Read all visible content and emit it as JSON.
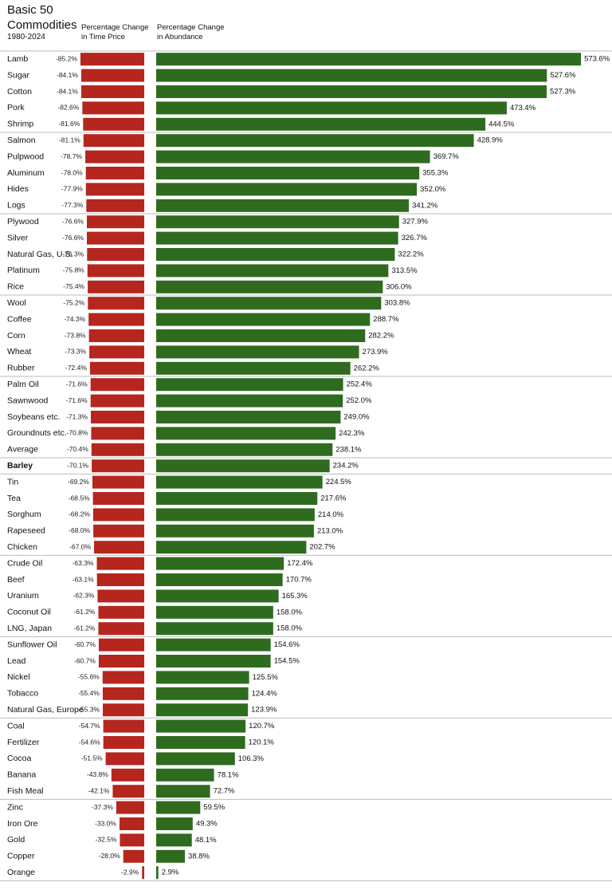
{
  "chart_data": {
    "type": "bar",
    "orientation": "horizontal",
    "title": "Basic 50 Commodities",
    "subtitle": "1980-2024",
    "categories": [
      "Lamb",
      "Sugar",
      "Cotton",
      "Pork",
      "Shrimp",
      "Salmon",
      "Pulpwood",
      "Aluminum",
      "Hides",
      "Logs",
      "Plywood",
      "Silver",
      "Natural Gas, U.S.",
      "Platinum",
      "Rice",
      "Wool",
      "Coffee",
      "Corn",
      "Wheat",
      "Rubber",
      "Palm Oil",
      "Sawnwood",
      "Soybeans etc.",
      "Groundnuts etc.",
      "Average",
      "Barley",
      "Tin",
      "Tea",
      "Sorghum",
      "Rapeseed",
      "Chicken",
      "Crude Oil",
      "Beef",
      "Uranium",
      "Coconut Oil",
      "LNG, Japan",
      "Sunflower Oil",
      "Lead",
      "Nickel",
      "Tobacco",
      "Natural Gas, Europe",
      "Coal",
      "Fertilizer",
      "Cocoa",
      "Banana",
      "Fish Meal",
      "Zinc",
      "Iron Ore",
      "Gold",
      "Copper",
      "Orange"
    ],
    "series": [
      {
        "name": "Percentage Change in Time Price",
        "color": "#b5261e",
        "xlim": [
          -100,
          0
        ],
        "values": [
          -85.2,
          -84.1,
          -84.1,
          -82.6,
          -81.6,
          -81.1,
          -78.7,
          -78.0,
          -77.9,
          -77.3,
          -76.6,
          -76.6,
          -76.3,
          -75.8,
          -75.4,
          -75.2,
          -74.3,
          -73.8,
          -73.3,
          -72.4,
          -71.6,
          -71.6,
          -71.3,
          -70.8,
          -70.4,
          -70.1,
          -69.2,
          -68.5,
          -68.2,
          -68.0,
          -67.0,
          -63.3,
          -63.1,
          -62.3,
          -61.2,
          -61.2,
          -60.7,
          -60.7,
          -55.6,
          -55.4,
          -55.3,
          -54.7,
          -54.6,
          -51.5,
          -43.8,
          -42.1,
          -37.3,
          -33.0,
          -32.5,
          -28.0,
          -2.9
        ],
        "value_labels": [
          "-85.2%",
          "-84.1%",
          "-84.1%",
          "-82.6%",
          "-81.6%",
          "-81.1%",
          "-78.7%",
          "-78.0%",
          "-77.9%",
          "-77.3%",
          "-76.6%",
          "-76.6%",
          "-76.3%",
          "-75.8%",
          "-75.4%",
          "-75.2%",
          "-74.3%",
          "-73.8%",
          "-73.3%",
          "-72.4%",
          "-71.6%",
          "-71.6%",
          "-71.3%",
          "-70.8%",
          "-70.4%",
          "-70.1%",
          "-69.2%",
          "-68.5%",
          "-68.2%",
          "-68.0%",
          "-67.0%",
          "-63.3%",
          "-63.1%",
          "-62.3%",
          "-61.2%",
          "-61.2%",
          "-60.7%",
          "-60.7%",
          "-55.6%",
          "-55.4%",
          "-55.3%",
          "-54.7%",
          "-54.6%",
          "-51.5%",
          "-43.8%",
          "-42.1%",
          "-37.3%",
          "-33.0%",
          "-32.5%",
          "-28.0%",
          "-2.9%"
        ]
      },
      {
        "name": "Percentage Change in Abundance",
        "color": "#2f6b1f",
        "xlim": [
          0,
          600
        ],
        "values": [
          573.6,
          527.6,
          527.3,
          473.4,
          444.5,
          428.9,
          369.7,
          355.3,
          352.0,
          341.2,
          327.9,
          326.7,
          322.2,
          313.5,
          306.0,
          303.8,
          288.7,
          282.2,
          273.9,
          262.2,
          252.4,
          252.0,
          249.0,
          242.3,
          238.1,
          234.2,
          224.5,
          217.6,
          214.0,
          213.0,
          202.7,
          172.4,
          170.7,
          165.3,
          158.0,
          158.0,
          154.6,
          154.5,
          125.5,
          124.4,
          123.9,
          120.7,
          120.1,
          106.3,
          78.1,
          72.7,
          59.5,
          49.3,
          48.1,
          38.8,
          2.9
        ],
        "value_labels": [
          "573.6%",
          "527.6%",
          "527.3%",
          "473.4%",
          "444.5%",
          "428.9%",
          "369.7%",
          "355.3%",
          "352.0%",
          "341.2%",
          "327.9%",
          "326.7%",
          "322.2%",
          "313.5%",
          "306.0%",
          "303.8%",
          "288.7%",
          "282.2%",
          "273.9%",
          "262.2%",
          "252.4%",
          "252.0%",
          "249.0%",
          "242.3%",
          "238.1%",
          "234.2%",
          "224.5%",
          "217.6%",
          "214.0%",
          "213.0%",
          "202.7%",
          "172.4%",
          "170.7%",
          "165.3%",
          "158.0%",
          "158.0%",
          "154.6%",
          "154.5%",
          "125.5%",
          "124.4%",
          "123.9%",
          "120.7%",
          "120.1%",
          "106.3%",
          "78.1%",
          "72.7%",
          "59.5%",
          "49.3%",
          "48.1%",
          "38.8%",
          "2.9%"
        ]
      }
    ]
  }
}
